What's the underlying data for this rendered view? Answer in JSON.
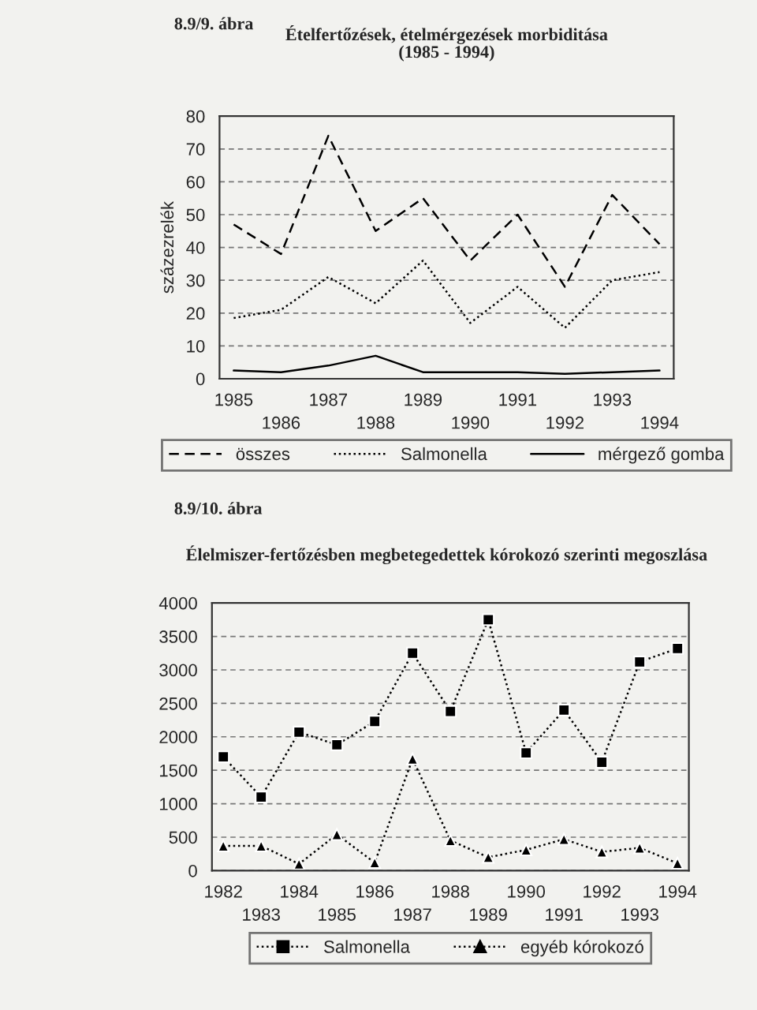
{
  "chart_data": [
    {
      "type": "line",
      "title": "Ételfertőzések, ételmérgezések morbiditása",
      "subtitle": "(1985 - 1994)",
      "ylabel": "százezrelék",
      "annotations": [
        "8.9/9. ábra"
      ],
      "categories": [
        "1985",
        "1986",
        "1987",
        "1988",
        "1989",
        "1990",
        "1991",
        "1992",
        "1993",
        "1994"
      ],
      "series": [
        {
          "name": "összes",
          "color": "#000000",
          "line_style": "dashed",
          "values": [
            47,
            38,
            74,
            45,
            55,
            36,
            50,
            28,
            56,
            41
          ]
        },
        {
          "name": "Salmonella",
          "color": "#000000",
          "line_style": "dotted",
          "values": [
            18.5,
            21,
            31,
            23,
            36,
            17,
            28,
            15.5,
            30,
            32.5
          ]
        },
        {
          "name": "mérgező gomba",
          "color": "#000000",
          "line_style": "solid",
          "values": [
            2.5,
            2,
            4,
            7,
            2,
            2,
            2,
            1.5,
            2,
            2.5
          ]
        }
      ],
      "ylim": [
        0,
        80
      ],
      "yticks": [
        0,
        10,
        20,
        30,
        40,
        50,
        60,
        70,
        80
      ],
      "grid": "y",
      "legend": "bottom",
      "marker": "none"
    },
    {
      "type": "line",
      "title": "Élelmiszer-fertőzésben megbetegedettek kórokozó szerinti megoszlása",
      "annotations": [
        "8.9/10. ábra"
      ],
      "categories": [
        "1982",
        "1983",
        "1984",
        "1985",
        "1986",
        "1987",
        "1988",
        "1989",
        "1990",
        "1991",
        "1992",
        "1993",
        "1994"
      ],
      "series": [
        {
          "name": "Salmonella",
          "color": "#000000",
          "line_style": "dotted",
          "marker": "square",
          "values": [
            1700,
            1100,
            2070,
            1880,
            2230,
            3250,
            2380,
            3750,
            1760,
            2400,
            1620,
            3120,
            3320
          ]
        },
        {
          "name": "egyéb kórokozó",
          "color": "#000000",
          "line_style": "dotted",
          "marker": "triangle",
          "values": [
            370,
            370,
            100,
            540,
            120,
            1670,
            450,
            200,
            310,
            470,
            280,
            340,
            110
          ]
        }
      ],
      "ylim": [
        0,
        4000
      ],
      "yticks": [
        0,
        500,
        1000,
        1500,
        2000,
        2500,
        3000,
        3500,
        4000
      ],
      "grid": "y",
      "legend": "bottom"
    }
  ]
}
